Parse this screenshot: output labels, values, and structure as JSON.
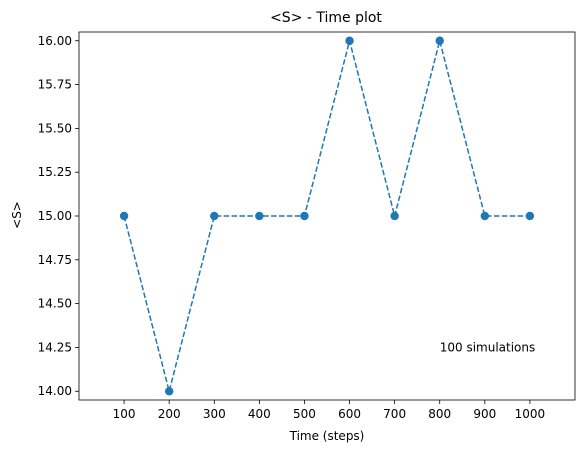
{
  "chart_data": {
    "type": "line",
    "title": "<S> - Time plot",
    "xlabel": "Time (steps)",
    "ylabel": "<S>",
    "x": [
      100,
      200,
      300,
      400,
      500,
      600,
      700,
      800,
      900,
      1000
    ],
    "xtick_labels": [
      "100",
      "200",
      "300",
      "400",
      "500",
      "600",
      "700",
      "800",
      "900",
      "1000"
    ],
    "xlim": [
      0,
      1100
    ],
    "ylim": [
      13.95,
      16.05
    ],
    "yticks": [
      14.0,
      14.25,
      14.5,
      14.75,
      15.0,
      15.25,
      15.5,
      15.75,
      16.0
    ],
    "ytick_labels": [
      "14.00",
      "14.25",
      "14.50",
      "14.75",
      "15.00",
      "15.25",
      "15.50",
      "15.75",
      "16.00"
    ],
    "series": [
      {
        "values": [
          15,
          14,
          15,
          15,
          15,
          16,
          15,
          16,
          15,
          15
        ],
        "color": "#1f77b4",
        "linestyle": "dashed",
        "marker": "circle"
      }
    ],
    "annotations": [
      {
        "text": "100 simulations",
        "x": 800,
        "y": 14.25
      }
    ],
    "grid": false
  }
}
